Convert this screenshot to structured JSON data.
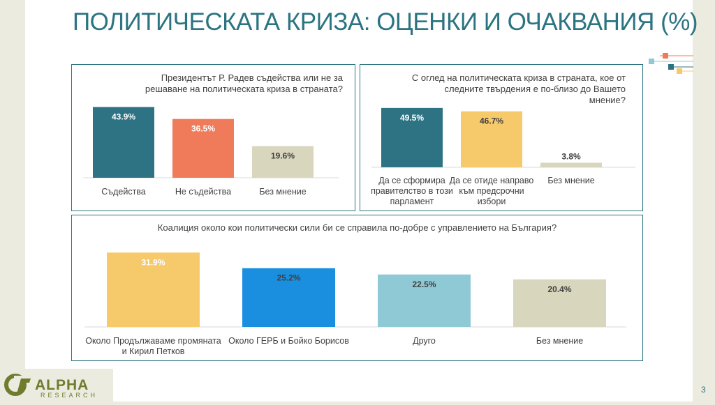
{
  "page": {
    "title": "ПОЛИТИЧЕСКАТА КРИЗА: ОЦЕНКИ И ОЧАКВАНИЯ (%)",
    "page_number": "3",
    "logo_text": "ALPHA",
    "logo_subtext": "RESEARCH"
  },
  "colors": {
    "title": "#2b7481",
    "border": "#2b7481",
    "teal": "#2e7383",
    "orange": "#f07b5a",
    "beige": "#d8d6bd",
    "yellow": "#f6c96a",
    "blue": "#1a8fe0",
    "lightblue": "#8fc9d6"
  },
  "chart_data": [
    {
      "type": "bar",
      "title": "Президентът Р. Радев съдейства или не за решаване на политическата криза в страната?",
      "categories": [
        "Съдейства",
        "Не съдейства",
        "Без мнение"
      ],
      "values": [
        43.9,
        36.5,
        19.6
      ],
      "labels": [
        "43.9%",
        "36.5%",
        "19.6%"
      ],
      "colors": [
        "#2e7383",
        "#f07b5a",
        "#d8d6bd"
      ],
      "label_colors": [
        "#ffffff",
        "#ffffff",
        "#404040"
      ],
      "ylim": [
        0,
        45
      ]
    },
    {
      "type": "bar",
      "title": "С оглед на политическата криза в страната, кое от следните твърдения е по-близо до Вашето мнение?",
      "categories": [
        "Да се сформира правителство в този парламент",
        "Да се отиде направо към предсрочни избори",
        "Без мнение"
      ],
      "category_lines": [
        [
          "Да се сформира",
          "правителство в този",
          "парламент"
        ],
        [
          "Да се отиде направо",
          "към предсрочни",
          "избори"
        ],
        [
          "Без мнение"
        ]
      ],
      "values": [
        49.5,
        46.7,
        3.8
      ],
      "labels": [
        "49.5%",
        "46.7%",
        "3.8%"
      ],
      "colors": [
        "#2e7383",
        "#f6c96a",
        "#d8d6bd"
      ],
      "label_colors": [
        "#ffffff",
        "#404040",
        "#404040"
      ],
      "ylim": [
        0,
        50
      ]
    },
    {
      "type": "bar",
      "title": "Коалиция около кои политически сили би се справила по-добре с управлението на България?",
      "categories": [
        "Около Продължаваме промяната и Кирил Петков",
        "Около ГЕРБ и Бойко Борисов",
        "Друго",
        "Без мнение"
      ],
      "category_lines": [
        [
          "Около Продължаваме промяната",
          "и Кирил Петков"
        ],
        [
          "Около ГЕРБ и Бойко Борисов"
        ],
        [
          "Друго"
        ],
        [
          "Без мнение"
        ]
      ],
      "values": [
        31.9,
        25.2,
        22.5,
        20.4
      ],
      "labels": [
        "31.9%",
        "25.2%",
        "22.5%",
        "20.4%"
      ],
      "colors": [
        "#f6c96a",
        "#1a8fe0",
        "#8fc9d6",
        "#d8d6bd"
      ],
      "label_colors": [
        "#ffffff",
        "#404040",
        "#404040",
        "#404040"
      ],
      "ylim": [
        0,
        32
      ]
    }
  ]
}
